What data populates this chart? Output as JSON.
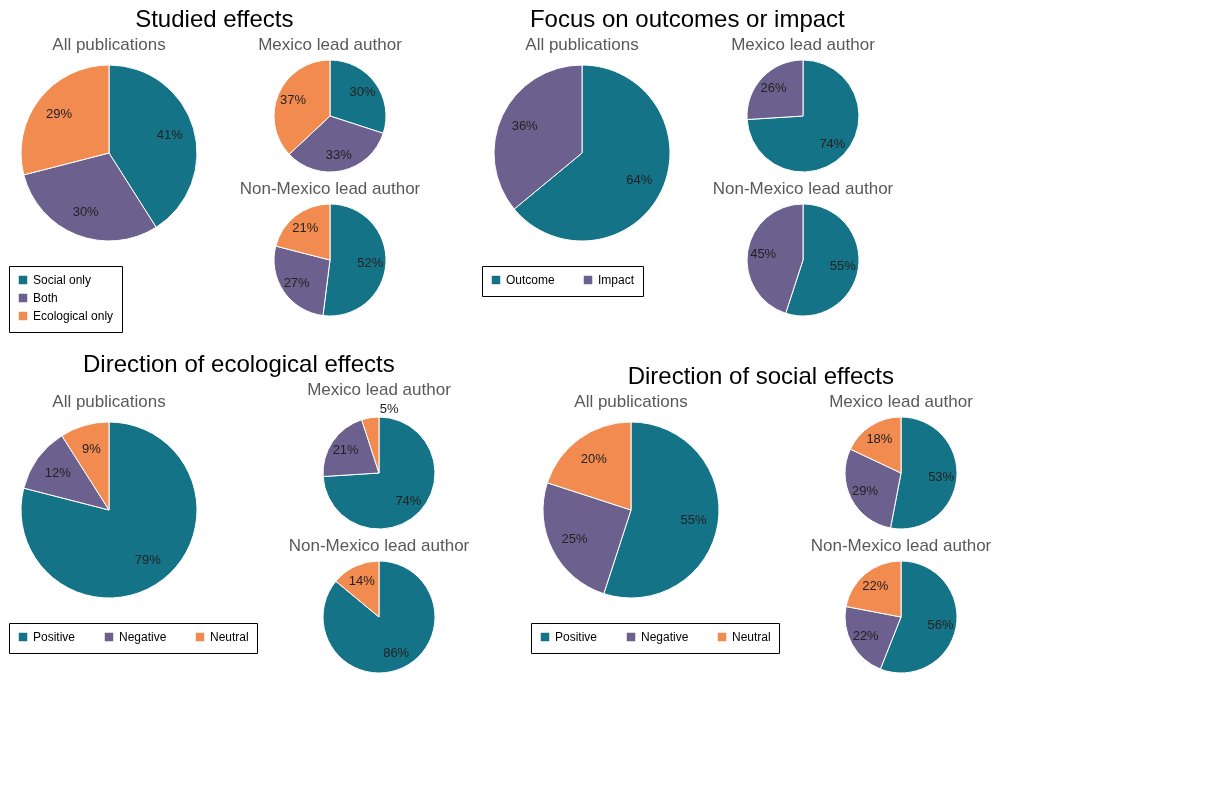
{
  "chart_data": [
    {
      "type": "pie",
      "title": "Studied effects",
      "subtitle": "All publications",
      "categories": [
        "Social only",
        "Both",
        "Ecological only"
      ],
      "values": [
        41,
        30,
        29
      ],
      "value_labels": [
        "41%",
        "30%",
        "29%"
      ],
      "colors": [
        "#157387",
        "#6c618e",
        "#f28b4f"
      ],
      "legend": "bottom"
    },
    {
      "type": "pie",
      "title": "Mexico lead author",
      "categories": [
        null,
        null,
        null
      ],
      "values": [
        30,
        33,
        37
      ],
      "value_labels": [
        "30%",
        "33%",
        "37%"
      ],
      "colors": [
        "#157387",
        "#6c618e",
        "#f28b4f"
      ]
    },
    {
      "type": "pie",
      "title": "Non-Mexico lead author",
      "categories": [
        null,
        null,
        null
      ],
      "values": [
        52,
        27,
        21
      ],
      "value_labels": [
        "52%",
        "27%",
        "21%"
      ],
      "colors": [
        "#157387",
        "#6c618e",
        "#f28b4f"
      ]
    },
    {
      "type": "pie",
      "title": "Focus on outcomes or impact",
      "subtitle": "All publications",
      "categories": [
        "Outcome",
        "Impact"
      ],
      "values": [
        64,
        36
      ],
      "value_labels": [
        "64%",
        "36%"
      ],
      "colors": [
        "#157387",
        "#6c618e"
      ],
      "legend": "bottom"
    },
    {
      "type": "pie",
      "title": "Mexico lead author",
      "categories": [
        null,
        null
      ],
      "values": [
        74,
        26
      ],
      "value_labels": [
        "74%",
        "26%"
      ],
      "colors": [
        "#157387",
        "#6c618e"
      ]
    },
    {
      "type": "pie",
      "title": "Non-Mexico lead author",
      "categories": [
        null,
        null
      ],
      "values": [
        55,
        45
      ],
      "value_labels": [
        "55%",
        "45%"
      ],
      "colors": [
        "#157387",
        "#6c618e"
      ]
    },
    {
      "type": "pie",
      "title": "Direction of ecological effects",
      "subtitle": "All publications",
      "categories": [
        "Positive",
        "Negative",
        "Neutral"
      ],
      "values": [
        79,
        12,
        9
      ],
      "value_labels": [
        "79%",
        "12%",
        "9%"
      ],
      "colors": [
        "#157387",
        "#6c618e",
        "#f28b4f"
      ],
      "legend": "bottom"
    },
    {
      "type": "pie",
      "title": "Mexico lead author",
      "categories": [
        null,
        null,
        null
      ],
      "values": [
        74,
        21,
        5
      ],
      "value_labels": [
        "74%",
        "21%",
        "5%"
      ],
      "colors": [
        "#157387",
        "#6c618e",
        "#f28b4f"
      ]
    },
    {
      "type": "pie",
      "title": "Non-Mexico lead author",
      "categories": [
        null,
        null
      ],
      "values": [
        86,
        14
      ],
      "value_labels": [
        "86%",
        "14%"
      ],
      "colors": [
        "#157387",
        "#f28b4f"
      ]
    },
    {
      "type": "pie",
      "title": "Direction of social effects",
      "subtitle": "All publications",
      "categories": [
        "Positive",
        "Negative",
        "Neutral"
      ],
      "values": [
        55,
        25,
        20
      ],
      "value_labels": [
        "55%",
        "25%",
        "20%"
      ],
      "colors": [
        "#157387",
        "#6c618e",
        "#f28b4f"
      ],
      "legend": "bottom"
    },
    {
      "type": "pie",
      "title": "Mexico lead author",
      "categories": [
        null,
        null,
        null
      ],
      "values": [
        53,
        29,
        18
      ],
      "value_labels": [
        "53%",
        "29%",
        "18%"
      ],
      "colors": [
        "#157387",
        "#6c618e",
        "#f28b4f"
      ]
    },
    {
      "type": "pie",
      "title": "Non-Mexico lead author",
      "categories": [
        null,
        null,
        null
      ],
      "values": [
        56,
        22,
        22
      ],
      "value_labels": [
        "56%",
        "22%",
        "22%"
      ],
      "colors": [
        "#157387",
        "#6c618e",
        "#f28b4f"
      ]
    }
  ]
}
